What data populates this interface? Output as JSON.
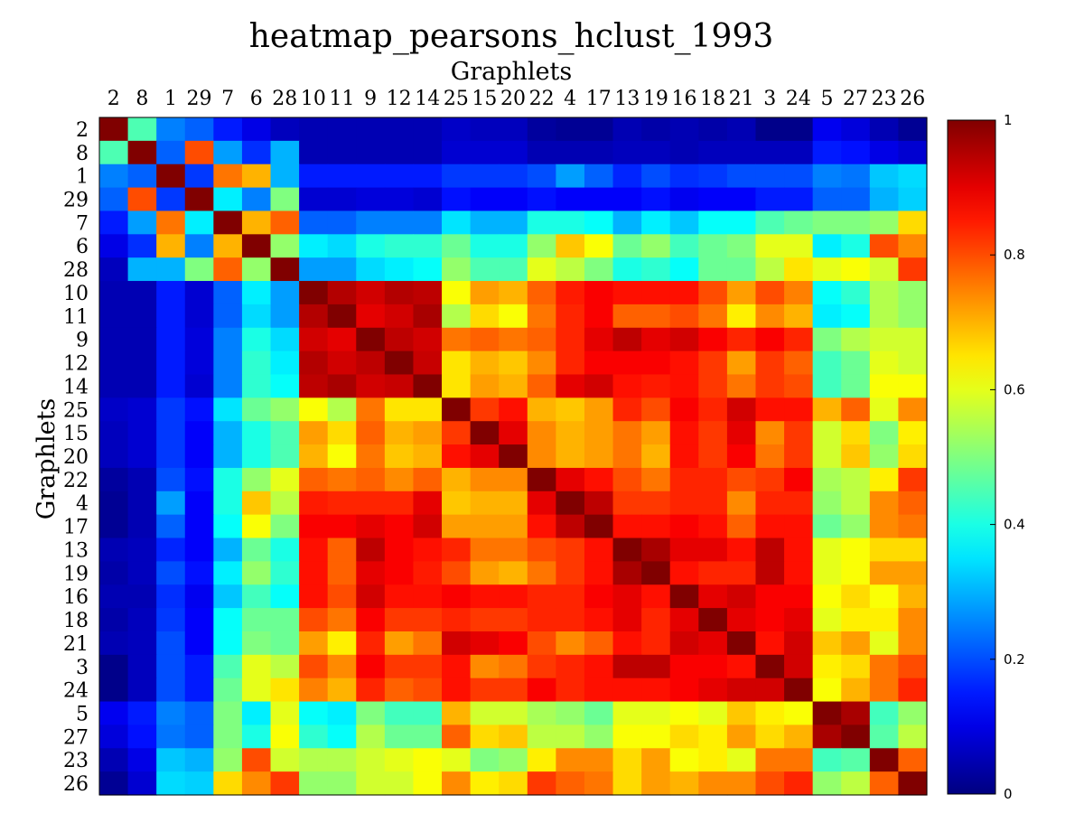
{
  "chart_data": {
    "type": "heatmap",
    "title": "heatmap_pearsons_hclust_1993",
    "xlabel": "Graphlets",
    "ylabel": "Graphlets",
    "labels": [
      "2",
      "8",
      "1",
      "29",
      "7",
      "6",
      "28",
      "10",
      "11",
      "9",
      "12",
      "14",
      "25",
      "15",
      "20",
      "22",
      "4",
      "17",
      "13",
      "19",
      "16",
      "18",
      "21",
      "3",
      "24",
      "5",
      "27",
      "23",
      "26"
    ],
    "colorbar": {
      "min": 0,
      "max": 1,
      "ticks": [
        "0",
        "0.2",
        "0.4",
        "0.6",
        "0.8",
        "1"
      ]
    },
    "colormap": "jet",
    "values": [
      [
        1.0,
        0.45,
        0.25,
        0.22,
        0.15,
        0.1,
        0.06,
        0.05,
        0.05,
        0.05,
        0.05,
        0.05,
        0.07,
        0.06,
        0.06,
        0.03,
        0.02,
        0.02,
        0.05,
        0.04,
        0.05,
        0.04,
        0.05,
        0.01,
        0.01,
        0.11,
        0.09,
        0.05,
        0.02
      ],
      [
        0.45,
        1.0,
        0.22,
        0.8,
        0.28,
        0.17,
        0.3,
        0.05,
        0.05,
        0.05,
        0.05,
        0.05,
        0.08,
        0.08,
        0.08,
        0.05,
        0.05,
        0.05,
        0.06,
        0.06,
        0.05,
        0.06,
        0.06,
        0.06,
        0.06,
        0.15,
        0.14,
        0.1,
        0.08
      ],
      [
        0.25,
        0.22,
        1.0,
        0.18,
        0.76,
        0.7,
        0.3,
        0.15,
        0.15,
        0.15,
        0.15,
        0.15,
        0.18,
        0.18,
        0.18,
        0.2,
        0.28,
        0.22,
        0.16,
        0.2,
        0.17,
        0.18,
        0.2,
        0.2,
        0.2,
        0.25,
        0.24,
        0.32,
        0.34
      ],
      [
        0.22,
        0.8,
        0.18,
        1.0,
        0.36,
        0.25,
        0.5,
        0.08,
        0.08,
        0.09,
        0.09,
        0.08,
        0.14,
        0.12,
        0.12,
        0.14,
        0.12,
        0.12,
        0.12,
        0.14,
        0.11,
        0.12,
        0.12,
        0.15,
        0.15,
        0.22,
        0.22,
        0.3,
        0.33
      ],
      [
        0.15,
        0.28,
        0.76,
        0.36,
        1.0,
        0.7,
        0.78,
        0.22,
        0.22,
        0.25,
        0.25,
        0.25,
        0.35,
        0.3,
        0.3,
        0.4,
        0.4,
        0.38,
        0.3,
        0.36,
        0.32,
        0.38,
        0.38,
        0.45,
        0.48,
        0.5,
        0.5,
        0.52,
        0.66
      ],
      [
        0.1,
        0.17,
        0.7,
        0.25,
        0.7,
        1.0,
        0.52,
        0.36,
        0.34,
        0.4,
        0.42,
        0.42,
        0.48,
        0.4,
        0.4,
        0.52,
        0.68,
        0.62,
        0.48,
        0.52,
        0.44,
        0.48,
        0.5,
        0.6,
        0.6,
        0.36,
        0.4,
        0.8,
        0.74
      ],
      [
        0.06,
        0.3,
        0.3,
        0.5,
        0.78,
        0.52,
        1.0,
        0.28,
        0.28,
        0.34,
        0.36,
        0.38,
        0.52,
        0.45,
        0.45,
        0.6,
        0.56,
        0.5,
        0.4,
        0.42,
        0.38,
        0.48,
        0.48,
        0.56,
        0.65,
        0.6,
        0.62,
        0.58,
        0.82
      ],
      [
        0.05,
        0.05,
        0.15,
        0.08,
        0.22,
        0.36,
        0.28,
        1.0,
        0.95,
        0.92,
        0.95,
        0.94,
        0.62,
        0.72,
        0.7,
        0.78,
        0.85,
        0.88,
        0.86,
        0.86,
        0.86,
        0.8,
        0.72,
        0.8,
        0.75,
        0.38,
        0.42,
        0.55,
        0.52
      ],
      [
        0.05,
        0.05,
        0.15,
        0.08,
        0.22,
        0.34,
        0.28,
        0.95,
        1.0,
        0.9,
        0.92,
        0.96,
        0.55,
        0.66,
        0.62,
        0.76,
        0.84,
        0.88,
        0.78,
        0.78,
        0.8,
        0.76,
        0.64,
        0.74,
        0.7,
        0.36,
        0.38,
        0.55,
        0.52
      ],
      [
        0.05,
        0.05,
        0.15,
        0.09,
        0.25,
        0.4,
        0.34,
        0.92,
        0.9,
        1.0,
        0.94,
        0.92,
        0.76,
        0.78,
        0.76,
        0.78,
        0.84,
        0.9,
        0.94,
        0.9,
        0.92,
        0.88,
        0.84,
        0.88,
        0.84,
        0.5,
        0.55,
        0.58,
        0.58
      ],
      [
        0.05,
        0.05,
        0.15,
        0.09,
        0.25,
        0.42,
        0.36,
        0.95,
        0.92,
        0.94,
        1.0,
        0.93,
        0.65,
        0.7,
        0.68,
        0.74,
        0.84,
        0.88,
        0.88,
        0.88,
        0.86,
        0.82,
        0.72,
        0.82,
        0.78,
        0.44,
        0.48,
        0.6,
        0.58
      ],
      [
        0.05,
        0.05,
        0.15,
        0.08,
        0.25,
        0.42,
        0.38,
        0.94,
        0.96,
        0.92,
        0.93,
        1.0,
        0.65,
        0.72,
        0.7,
        0.78,
        0.9,
        0.92,
        0.86,
        0.85,
        0.86,
        0.82,
        0.76,
        0.82,
        0.8,
        0.44,
        0.48,
        0.62,
        0.62
      ],
      [
        0.07,
        0.08,
        0.18,
        0.14,
        0.35,
        0.48,
        0.52,
        0.62,
        0.55,
        0.76,
        0.65,
        0.65,
        1.0,
        0.82,
        0.86,
        0.7,
        0.68,
        0.72,
        0.84,
        0.8,
        0.88,
        0.84,
        0.92,
        0.86,
        0.86,
        0.7,
        0.78,
        0.6,
        0.74
      ],
      [
        0.06,
        0.08,
        0.18,
        0.12,
        0.3,
        0.4,
        0.45,
        0.72,
        0.66,
        0.78,
        0.7,
        0.72,
        0.82,
        1.0,
        0.9,
        0.74,
        0.7,
        0.72,
        0.76,
        0.72,
        0.86,
        0.82,
        0.9,
        0.74,
        0.82,
        0.58,
        0.66,
        0.5,
        0.64
      ],
      [
        0.06,
        0.08,
        0.18,
        0.12,
        0.3,
        0.4,
        0.45,
        0.7,
        0.62,
        0.76,
        0.68,
        0.7,
        0.86,
        0.9,
        1.0,
        0.74,
        0.7,
        0.72,
        0.76,
        0.7,
        0.86,
        0.82,
        0.88,
        0.76,
        0.82,
        0.58,
        0.68,
        0.52,
        0.66
      ],
      [
        0.03,
        0.05,
        0.2,
        0.14,
        0.4,
        0.52,
        0.6,
        0.78,
        0.76,
        0.78,
        0.74,
        0.78,
        0.7,
        0.74,
        0.74,
        1.0,
        0.9,
        0.86,
        0.8,
        0.76,
        0.84,
        0.84,
        0.8,
        0.82,
        0.88,
        0.54,
        0.56,
        0.64,
        0.82
      ],
      [
        0.02,
        0.05,
        0.28,
        0.12,
        0.4,
        0.68,
        0.56,
        0.85,
        0.84,
        0.84,
        0.84,
        0.9,
        0.68,
        0.7,
        0.7,
        0.9,
        1.0,
        0.94,
        0.82,
        0.82,
        0.84,
        0.84,
        0.74,
        0.84,
        0.84,
        0.52,
        0.56,
        0.74,
        0.78
      ],
      [
        0.02,
        0.05,
        0.22,
        0.12,
        0.38,
        0.62,
        0.5,
        0.88,
        0.88,
        0.9,
        0.88,
        0.92,
        0.72,
        0.72,
        0.72,
        0.86,
        0.94,
        1.0,
        0.86,
        0.86,
        0.88,
        0.86,
        0.78,
        0.86,
        0.86,
        0.48,
        0.52,
        0.74,
        0.76
      ],
      [
        0.05,
        0.06,
        0.16,
        0.12,
        0.3,
        0.48,
        0.4,
        0.86,
        0.78,
        0.94,
        0.88,
        0.86,
        0.84,
        0.76,
        0.76,
        0.8,
        0.82,
        0.86,
        1.0,
        0.96,
        0.9,
        0.9,
        0.86,
        0.94,
        0.86,
        0.6,
        0.62,
        0.66,
        0.66
      ],
      [
        0.04,
        0.06,
        0.2,
        0.14,
        0.36,
        0.52,
        0.42,
        0.86,
        0.78,
        0.9,
        0.88,
        0.85,
        0.8,
        0.72,
        0.7,
        0.76,
        0.82,
        0.86,
        0.96,
        1.0,
        0.86,
        0.84,
        0.84,
        0.94,
        0.86,
        0.6,
        0.62,
        0.72,
        0.72
      ],
      [
        0.05,
        0.05,
        0.17,
        0.11,
        0.32,
        0.44,
        0.38,
        0.86,
        0.8,
        0.92,
        0.86,
        0.86,
        0.88,
        0.86,
        0.86,
        0.84,
        0.84,
        0.88,
        0.9,
        0.86,
        1.0,
        0.9,
        0.92,
        0.88,
        0.88,
        0.62,
        0.66,
        0.62,
        0.7
      ],
      [
        0.04,
        0.06,
        0.18,
        0.12,
        0.38,
        0.48,
        0.48,
        0.8,
        0.76,
        0.88,
        0.82,
        0.82,
        0.84,
        0.82,
        0.82,
        0.84,
        0.84,
        0.86,
        0.9,
        0.84,
        0.9,
        1.0,
        0.9,
        0.88,
        0.9,
        0.6,
        0.64,
        0.64,
        0.74
      ],
      [
        0.05,
        0.06,
        0.2,
        0.12,
        0.38,
        0.5,
        0.48,
        0.72,
        0.64,
        0.84,
        0.72,
        0.76,
        0.92,
        0.9,
        0.88,
        0.8,
        0.74,
        0.78,
        0.86,
        0.84,
        0.92,
        0.9,
        1.0,
        0.86,
        0.92,
        0.68,
        0.72,
        0.6,
        0.74
      ],
      [
        0.01,
        0.06,
        0.2,
        0.15,
        0.45,
        0.6,
        0.56,
        0.8,
        0.74,
        0.88,
        0.82,
        0.82,
        0.86,
        0.74,
        0.76,
        0.82,
        0.84,
        0.86,
        0.94,
        0.94,
        0.88,
        0.88,
        0.86,
        1.0,
        0.92,
        0.64,
        0.66,
        0.76,
        0.8
      ],
      [
        0.01,
        0.06,
        0.2,
        0.15,
        0.48,
        0.6,
        0.65,
        0.75,
        0.7,
        0.84,
        0.78,
        0.8,
        0.86,
        0.82,
        0.82,
        0.88,
        0.84,
        0.86,
        0.86,
        0.86,
        0.88,
        0.9,
        0.92,
        0.92,
        1.0,
        0.62,
        0.7,
        0.76,
        0.84
      ],
      [
        0.11,
        0.15,
        0.25,
        0.22,
        0.5,
        0.36,
        0.6,
        0.38,
        0.36,
        0.5,
        0.44,
        0.44,
        0.7,
        0.58,
        0.58,
        0.54,
        0.52,
        0.48,
        0.6,
        0.6,
        0.62,
        0.6,
        0.68,
        0.64,
        0.62,
        1.0,
        0.96,
        0.44,
        0.52
      ],
      [
        0.09,
        0.14,
        0.24,
        0.22,
        0.5,
        0.4,
        0.62,
        0.42,
        0.38,
        0.55,
        0.48,
        0.48,
        0.78,
        0.66,
        0.68,
        0.56,
        0.56,
        0.52,
        0.62,
        0.62,
        0.66,
        0.64,
        0.72,
        0.66,
        0.7,
        0.96,
        1.0,
        0.46,
        0.56
      ],
      [
        0.05,
        0.1,
        0.32,
        0.3,
        0.52,
        0.8,
        0.58,
        0.55,
        0.55,
        0.58,
        0.6,
        0.62,
        0.6,
        0.5,
        0.52,
        0.64,
        0.74,
        0.74,
        0.66,
        0.72,
        0.62,
        0.64,
        0.6,
        0.76,
        0.76,
        0.44,
        0.46,
        1.0,
        0.78
      ],
      [
        0.02,
        0.08,
        0.34,
        0.33,
        0.66,
        0.74,
        0.82,
        0.52,
        0.52,
        0.58,
        0.58,
        0.62,
        0.74,
        0.64,
        0.66,
        0.82,
        0.78,
        0.76,
        0.66,
        0.72,
        0.7,
        0.74,
        0.74,
        0.8,
        0.84,
        0.52,
        0.56,
        0.78,
        1.0
      ]
    ]
  }
}
